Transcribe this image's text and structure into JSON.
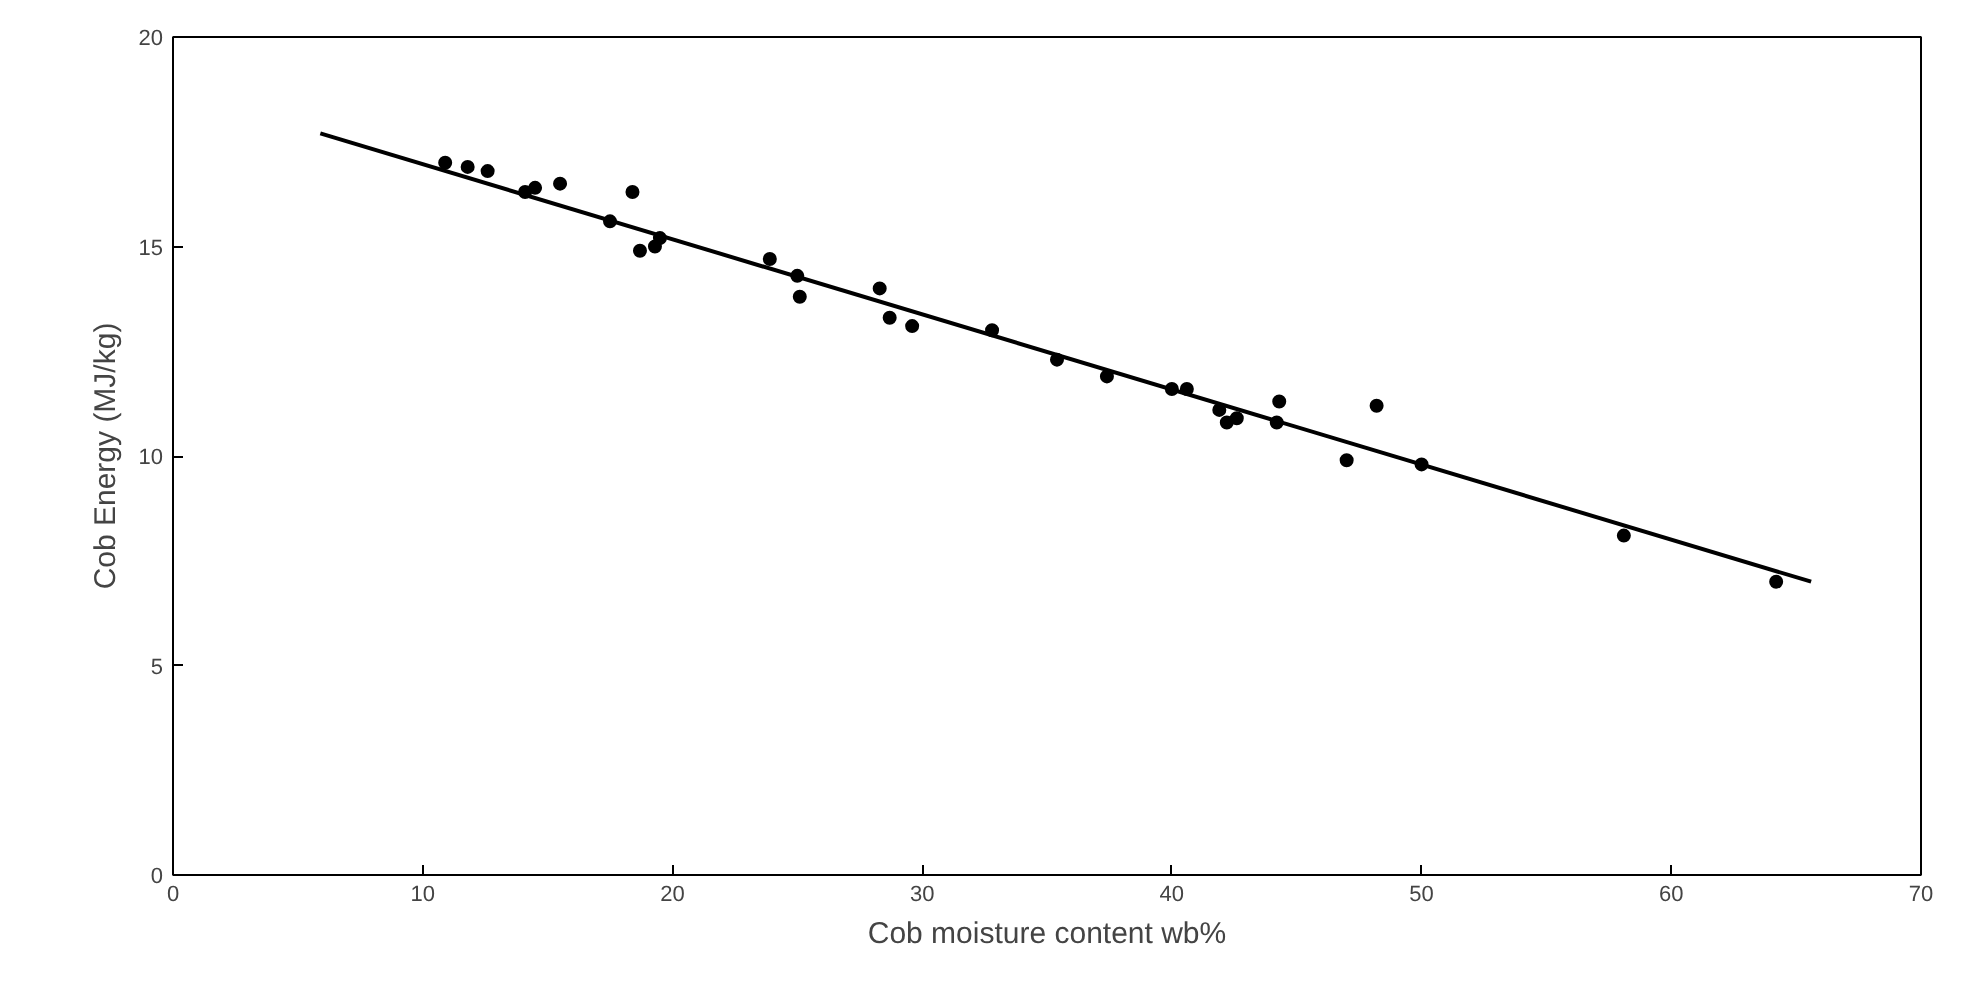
{
  "chart_data": {
    "type": "scatter",
    "xlabel": "Cob moisture content wb%",
    "ylabel": "Cob Energy (MJ/kg)",
    "xlim": [
      0,
      70
    ],
    "ylim": [
      0,
      20
    ],
    "xticks": [
      0,
      10,
      20,
      30,
      40,
      50,
      60,
      70
    ],
    "yticks": [
      0,
      5,
      10,
      15,
      20
    ],
    "grid": false,
    "marker": "circle",
    "series": [
      {
        "color": "#000000",
        "x": [
          10.9,
          11.8,
          12.6,
          14.1,
          14.5,
          15.5,
          18.4,
          17.5,
          18.7,
          19.3,
          19.5,
          23.9,
          25.0,
          25.1,
          28.3,
          28.7,
          29.6,
          32.8,
          35.4,
          37.4,
          40.0,
          40.6,
          41.9,
          42.2,
          42.6,
          44.3,
          44.2,
          48.2,
          47.0,
          50.0,
          58.1,
          64.2
        ],
        "values": [
          17.0,
          16.9,
          16.8,
          16.3,
          16.4,
          16.5,
          16.3,
          15.6,
          14.9,
          15.0,
          15.2,
          14.7,
          14.3,
          13.8,
          14.0,
          13.3,
          13.1,
          13.0,
          12.3,
          11.9,
          11.6,
          11.6,
          11.1,
          10.8,
          10.9,
          11.3,
          10.8,
          11.2,
          9.9,
          9.8,
          8.1,
          7.0
        ]
      },
      {
        "type": "line",
        "color": "#000000",
        "x": [
          5.9,
          65.6
        ],
        "values": [
          17.7,
          7.0
        ],
        "marker": "none"
      }
    ]
  }
}
